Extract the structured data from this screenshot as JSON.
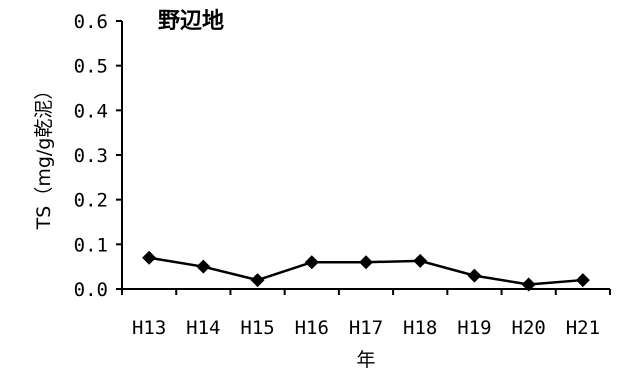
{
  "chart_data": {
    "type": "line",
    "title": "野辺地",
    "xlabel": "年",
    "ylabel": "TS（mg/g乾泥）",
    "categories": [
      "H13",
      "H14",
      "H15",
      "H16",
      "H17",
      "H18",
      "H19",
      "H20",
      "H21"
    ],
    "series": [
      {
        "values": [
          0.07,
          0.05,
          0.02,
          0.06,
          0.06,
          0.063,
          0.03,
          0.01,
          0.02
        ]
      }
    ],
    "ylim": [
      0,
      0.6
    ],
    "yticks": [
      "0.0",
      "0.1",
      "0.2",
      "0.3",
      "0.4",
      "0.5",
      "0.6"
    ],
    "grid": false,
    "line_color": "#000000",
    "marker": "diamond"
  }
}
